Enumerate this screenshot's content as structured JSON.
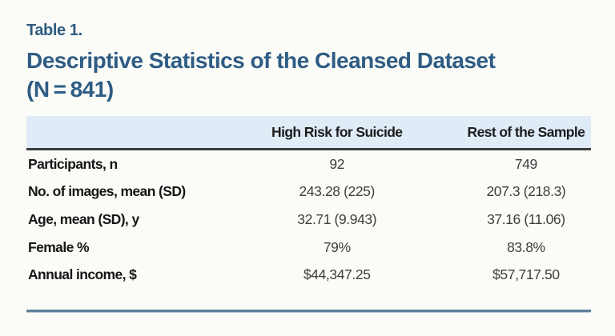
{
  "table_label": "Table 1.",
  "title_line1": "Descriptive Statistics of the Cleansed Dataset",
  "title_line2": "(N = 841)",
  "table": {
    "columns": [
      "",
      "High Risk for Suicide",
      "Rest of the Sample"
    ],
    "rows": [
      {
        "label": "Participants, n",
        "high_risk": "92",
        "rest": "749"
      },
      {
        "label": "No. of images, mean (SD)",
        "high_risk": "243.28 (225)",
        "rest": "207.3 (218.3)"
      },
      {
        "label": "Age, mean (SD), y",
        "high_risk": "32.71 (9.943)",
        "rest": "37.16 (11.06)"
      },
      {
        "label": "Female %",
        "high_risk": "79%",
        "rest": "83.8%"
      },
      {
        "label": "Annual income, $",
        "high_risk": "$44,347.25",
        "rest": "$57,717.50"
      }
    ]
  },
  "colors": {
    "accent_blue": "#2e5c84",
    "header_band": "#dfecf7",
    "header_rule": "#3c3c3c",
    "bottom_rule": "#5f7f9d",
    "background": "#fbfbf7",
    "body_text": "#161616",
    "value_text": "#3e3e3e"
  }
}
